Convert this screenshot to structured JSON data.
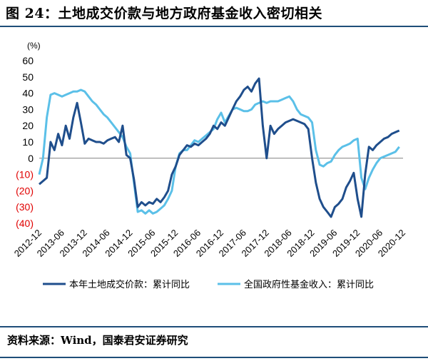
{
  "title": "图 24：土地成交价款与地方政府基金收入密切相关",
  "source": "资料来源：Wind，国泰君安证券研究",
  "chart_data": {
    "type": "line",
    "unit": "(%)",
    "ylim": [
      -40,
      60
    ],
    "y_ticks": [
      60,
      50,
      40,
      30,
      20,
      10,
      0,
      -10,
      -20,
      -30,
      -40
    ],
    "y_tick_labels": [
      "60",
      "50",
      "40",
      "30",
      "20",
      "10",
      "0",
      "(10)",
      "(20)",
      "(30)",
      "(40)"
    ],
    "x_ticks": [
      "2012-12",
      "2013-06",
      "2013-12",
      "2014-06",
      "2014-12",
      "2015-06",
      "2015-12",
      "2016-06",
      "2016-12",
      "2017-06",
      "2017-12",
      "2018-06",
      "2018-12",
      "2019-06",
      "2019-12",
      "2020-06",
      "2020-12"
    ],
    "colors": {
      "series1": "#1f4e8c",
      "series2": "#5bc0e8",
      "negative_tick": "#e00000"
    },
    "series": [
      {
        "name": "本年土地成交价款：累计同比",
        "points": [
          [
            "2012-12",
            -16
          ],
          [
            "2013-01",
            -14
          ],
          [
            "2013-02",
            -12
          ],
          [
            "2013-03",
            10
          ],
          [
            "2013-04",
            5
          ],
          [
            "2013-05",
            15
          ],
          [
            "2013-06",
            8
          ],
          [
            "2013-07",
            20
          ],
          [
            "2013-08",
            12
          ],
          [
            "2013-09",
            25
          ],
          [
            "2013-10",
            34
          ],
          [
            "2013-11",
            22
          ],
          [
            "2013-12",
            9
          ],
          [
            "2014-01",
            12
          ],
          [
            "2014-02",
            11
          ],
          [
            "2014-03",
            10
          ],
          [
            "2014-04",
            10
          ],
          [
            "2014-05",
            9
          ],
          [
            "2014-06",
            11
          ],
          [
            "2014-07",
            12
          ],
          [
            "2014-08",
            13
          ],
          [
            "2014-09",
            10
          ],
          [
            "2014-10",
            20
          ],
          [
            "2014-11",
            2
          ],
          [
            "2014-12",
            0
          ],
          [
            "2015-01",
            -13
          ],
          [
            "2015-02",
            -30
          ],
          [
            "2015-03",
            -27
          ],
          [
            "2015-04",
            -29
          ],
          [
            "2015-05",
            -27
          ],
          [
            "2015-06",
            -28
          ],
          [
            "2015-07",
            -25
          ],
          [
            "2015-08",
            -27
          ],
          [
            "2015-09",
            -24
          ],
          [
            "2015-10",
            -20
          ],
          [
            "2015-11",
            -10
          ],
          [
            "2015-12",
            -5
          ],
          [
            "2016-01",
            2
          ],
          [
            "2016-02",
            5
          ],
          [
            "2016-03",
            8
          ],
          [
            "2016-04",
            7
          ],
          [
            "2016-05",
            9
          ],
          [
            "2016-06",
            8
          ],
          [
            "2016-07",
            10
          ],
          [
            "2016-08",
            12
          ],
          [
            "2016-09",
            15
          ],
          [
            "2016-10",
            20
          ],
          [
            "2016-11",
            18
          ],
          [
            "2016-12",
            22
          ],
          [
            "2017-01",
            20
          ],
          [
            "2017-02",
            25
          ],
          [
            "2017-03",
            30
          ],
          [
            "2017-04",
            35
          ],
          [
            "2017-05",
            38
          ],
          [
            "2017-06",
            42
          ],
          [
            "2017-07",
            44
          ],
          [
            "2017-08",
            41
          ],
          [
            "2017-09",
            46
          ],
          [
            "2017-10",
            49
          ],
          [
            "2017-11",
            20
          ],
          [
            "2017-12",
            0
          ],
          [
            "2018-01",
            20
          ],
          [
            "2018-02",
            15
          ],
          [
            "2018-03",
            18
          ],
          [
            "2018-04",
            20
          ],
          [
            "2018-05",
            22
          ],
          [
            "2018-06",
            23
          ],
          [
            "2018-07",
            24
          ],
          [
            "2018-08",
            23
          ],
          [
            "2018-09",
            22
          ],
          [
            "2018-10",
            21
          ],
          [
            "2018-11",
            18
          ],
          [
            "2018-12",
            0
          ],
          [
            "2019-01",
            -15
          ],
          [
            "2019-02",
            -25
          ],
          [
            "2019-03",
            -30
          ],
          [
            "2019-04",
            -33
          ],
          [
            "2019-05",
            -36
          ],
          [
            "2019-06",
            -30
          ],
          [
            "2019-07",
            -28
          ],
          [
            "2019-08",
            -25
          ],
          [
            "2019-09",
            -18
          ],
          [
            "2019-10",
            -14
          ],
          [
            "2019-11",
            -9
          ],
          [
            "2019-12",
            -25
          ],
          [
            "2020-01",
            -36
          ],
          [
            "2020-02",
            -10
          ],
          [
            "2020-03",
            7
          ],
          [
            "2020-04",
            5
          ],
          [
            "2020-05",
            8
          ],
          [
            "2020-06",
            10
          ],
          [
            "2020-07",
            12
          ],
          [
            "2020-08",
            13
          ],
          [
            "2020-09",
            15
          ],
          [
            "2020-10",
            16
          ],
          [
            "2020-11",
            17
          ]
        ]
      },
      {
        "name": "全国政府性基金收入：累计同比",
        "points": [
          [
            "2012-12",
            -10
          ],
          [
            "2013-01",
            0
          ],
          [
            "2013-02",
            25
          ],
          [
            "2013-03",
            39
          ],
          [
            "2013-04",
            40
          ],
          [
            "2013-05",
            39
          ],
          [
            "2013-06",
            38
          ],
          [
            "2013-07",
            39
          ],
          [
            "2013-08",
            40
          ],
          [
            "2013-09",
            41
          ],
          [
            "2013-10",
            41
          ],
          [
            "2013-11",
            42
          ],
          [
            "2013-12",
            41
          ],
          [
            "2014-01",
            38
          ],
          [
            "2014-02",
            35
          ],
          [
            "2014-03",
            33
          ],
          [
            "2014-04",
            30
          ],
          [
            "2014-05",
            27
          ],
          [
            "2014-06",
            25
          ],
          [
            "2014-07",
            22
          ],
          [
            "2014-08",
            19
          ],
          [
            "2014-09",
            16
          ],
          [
            "2014-10",
            13
          ],
          [
            "2014-11",
            7
          ],
          [
            "2014-12",
            3
          ],
          [
            "2015-01",
            -15
          ],
          [
            "2015-02",
            -33
          ],
          [
            "2015-03",
            -32
          ],
          [
            "2015-04",
            -34
          ],
          [
            "2015-05",
            -32
          ],
          [
            "2015-06",
            -34
          ],
          [
            "2015-07",
            -33
          ],
          [
            "2015-08",
            -31
          ],
          [
            "2015-09",
            -29
          ],
          [
            "2015-10",
            -25
          ],
          [
            "2015-11",
            -20
          ],
          [
            "2015-12",
            -5
          ],
          [
            "2016-01",
            3
          ],
          [
            "2016-02",
            5
          ],
          [
            "2016-03",
            5
          ],
          [
            "2016-04",
            8
          ],
          [
            "2016-05",
            11
          ],
          [
            "2016-06",
            10
          ],
          [
            "2016-07",
            12
          ],
          [
            "2016-08",
            14
          ],
          [
            "2016-09",
            16
          ],
          [
            "2016-10",
            18
          ],
          [
            "2016-11",
            24
          ],
          [
            "2016-12",
            28
          ],
          [
            "2017-01",
            22
          ],
          [
            "2017-02",
            26
          ],
          [
            "2017-03",
            30
          ],
          [
            "2017-04",
            31
          ],
          [
            "2017-05",
            30
          ],
          [
            "2017-06",
            29
          ],
          [
            "2017-07",
            29
          ],
          [
            "2017-08",
            30
          ],
          [
            "2017-09",
            33
          ],
          [
            "2017-10",
            34
          ],
          [
            "2017-11",
            35
          ],
          [
            "2017-12",
            34
          ],
          [
            "2018-01",
            35
          ],
          [
            "2018-02",
            35
          ],
          [
            "2018-03",
            35
          ],
          [
            "2018-04",
            36
          ],
          [
            "2018-05",
            37
          ],
          [
            "2018-06",
            38
          ],
          [
            "2018-07",
            35
          ],
          [
            "2018-08",
            30
          ],
          [
            "2018-09",
            27
          ],
          [
            "2018-10",
            26
          ],
          [
            "2018-11",
            25
          ],
          [
            "2018-12",
            22
          ],
          [
            "2019-01",
            5
          ],
          [
            "2019-02",
            -4
          ],
          [
            "2019-03",
            -5
          ],
          [
            "2019-04",
            -3
          ],
          [
            "2019-05",
            -2
          ],
          [
            "2019-06",
            2
          ],
          [
            "2019-07",
            5
          ],
          [
            "2019-08",
            7
          ],
          [
            "2019-09",
            8
          ],
          [
            "2019-10",
            9
          ],
          [
            "2019-11",
            11
          ],
          [
            "2019-12",
            12
          ],
          [
            "2020-01",
            -12
          ],
          [
            "2020-02",
            -19
          ],
          [
            "2020-03",
            -12
          ],
          [
            "2020-04",
            -7
          ],
          [
            "2020-05",
            -3
          ],
          [
            "2020-06",
            0
          ],
          [
            "2020-07",
            1
          ],
          [
            "2020-08",
            2
          ],
          [
            "2020-09",
            3
          ],
          [
            "2020-10",
            4
          ],
          [
            "2020-11",
            7
          ]
        ]
      }
    ]
  }
}
